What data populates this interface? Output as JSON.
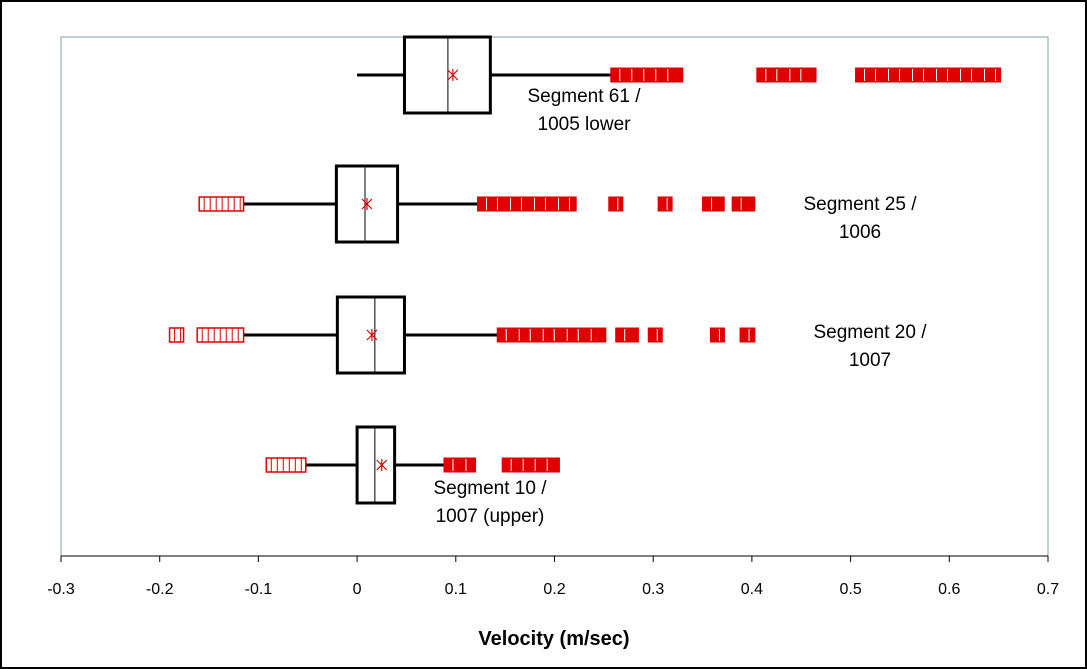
{
  "chart_data": {
    "type": "boxplot",
    "xlabel": "Velocity (m/sec)",
    "xlim": [
      -0.3,
      0.7
    ],
    "x_ticks": [
      "-0.3",
      "-0.2",
      "-0.1",
      "0",
      "0.1",
      "0.2",
      "0.3",
      "0.4",
      "0.5",
      "0.6",
      "0.7"
    ],
    "grid": false,
    "colors": {
      "box": "#000000",
      "mean_marker": "#e00000",
      "outlier": "#e00000",
      "plot_border": "#7f9fb5",
      "frame": "#000000"
    },
    "series": [
      {
        "label_lines": [
          "Segment 61 /",
          "1005 lower"
        ],
        "whisker_low": 0.0,
        "q1": 0.048,
        "median": 0.092,
        "q3": 0.135,
        "whisker_high": 0.257,
        "mean": 0.097,
        "outliers_filled": [
          [
            0.257,
            0.33
          ],
          [
            0.405,
            0.465
          ],
          [
            0.505,
            0.652
          ]
        ],
        "outliers_open": []
      },
      {
        "label_lines": [
          "Segment 25 /",
          "1006"
        ],
        "whisker_low": -0.115,
        "q1": -0.021,
        "median": 0.008,
        "q3": 0.041,
        "whisker_high": 0.122,
        "mean": 0.01,
        "outliers_filled": [
          [
            0.122,
            0.222
          ],
          [
            0.255,
            0.265
          ],
          [
            0.305,
            0.315
          ],
          [
            0.35,
            0.372
          ],
          [
            0.38,
            0.403
          ]
        ],
        "outliers_open": [
          [
            -0.16,
            -0.115
          ]
        ]
      },
      {
        "label_lines": [
          "Segment 20 /",
          "1007"
        ],
        "whisker_low": -0.115,
        "q1": -0.02,
        "median": 0.018,
        "q3": 0.048,
        "whisker_high": 0.142,
        "mean": 0.015,
        "outliers_filled": [
          [
            0.142,
            0.252
          ],
          [
            0.262,
            0.285
          ],
          [
            0.295,
            0.308
          ],
          [
            0.358,
            0.372
          ],
          [
            0.388,
            0.403
          ]
        ],
        "outliers_open": [
          [
            -0.19,
            -0.18
          ],
          [
            -0.162,
            -0.115
          ]
        ]
      },
      {
        "label_lines": [
          "Segment 10 /",
          "1007 (upper)"
        ],
        "whisker_low": -0.052,
        "q1": 0.0,
        "median": 0.018,
        "q3": 0.038,
        "whisker_high": 0.088,
        "mean": 0.025,
        "outliers_filled": [
          [
            0.088,
            0.12
          ],
          [
            0.147,
            0.205
          ]
        ],
        "outliers_open": [
          [
            -0.092,
            -0.052
          ]
        ]
      }
    ]
  }
}
